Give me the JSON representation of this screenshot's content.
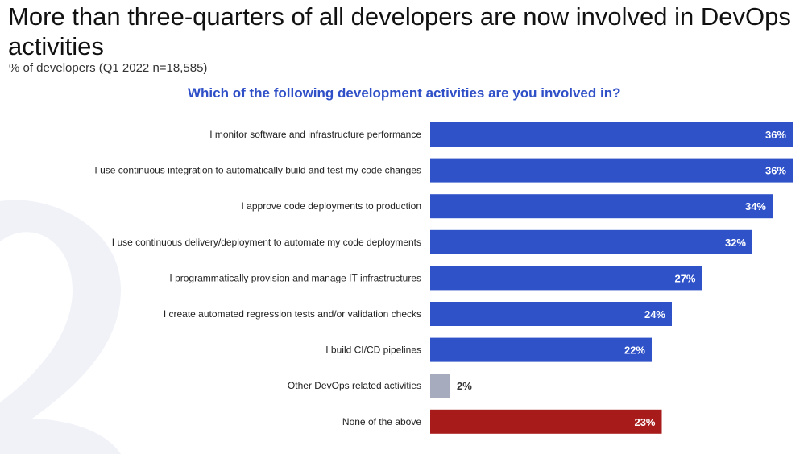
{
  "header": {
    "title": "More than three-quarters of all developers are now involved in DevOps activities",
    "subtitle": "% of developers (Q1 2022 n=18,585)",
    "question": "Which of the following development activities are you involved in?"
  },
  "colors": {
    "bar": "#2f52c9",
    "other": "#a6abbd",
    "none": "#a81b1b",
    "question": "#3050c8"
  },
  "chart_data": {
    "type": "bar",
    "orientation": "horizontal",
    "title": "Which of the following development activities are you involved in?",
    "categories": [
      "I monitor software and infrastructure performance",
      "I use continuous integration to automatically build and test my code changes",
      "I approve code deployments to production",
      "I use continuous delivery/deployment to automate my code deployments",
      "I programmatically provision and manage IT infrastructures",
      "I create automated regression tests and/or validation checks",
      "I build CI/CD pipelines",
      "Other DevOps related activities",
      "None of the above"
    ],
    "values": [
      36,
      36,
      34,
      32,
      27,
      24,
      22,
      2,
      23
    ],
    "labels": [
      "36%",
      "36%",
      "34%",
      "32%",
      "27%",
      "24%",
      "22%",
      "2%",
      "23%"
    ],
    "bar_colors": [
      "#2f52c9",
      "#2f52c9",
      "#2f52c9",
      "#2f52c9",
      "#2f52c9",
      "#2f52c9",
      "#2f52c9",
      "#a6abbd",
      "#a81b1b"
    ],
    "unit": "%",
    "xlim": [
      0,
      36
    ],
    "grid": false,
    "legend": "none"
  }
}
